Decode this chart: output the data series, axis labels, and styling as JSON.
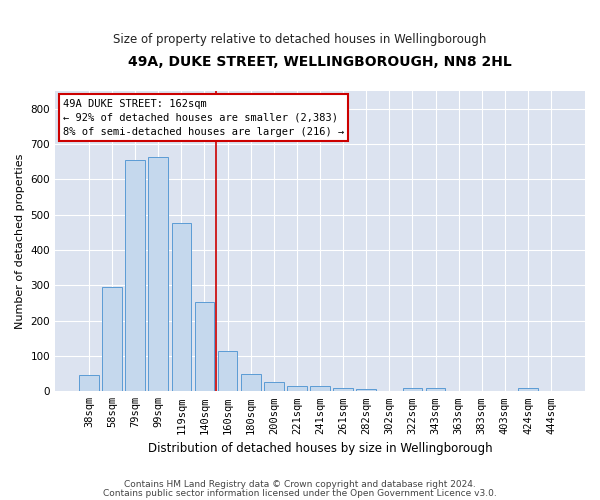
{
  "title": "49A, DUKE STREET, WELLINGBOROUGH, NN8 2HL",
  "subtitle": "Size of property relative to detached houses in Wellingborough",
  "xlabel": "Distribution of detached houses by size in Wellingborough",
  "ylabel": "Number of detached properties",
  "bar_color": "#c5d8ed",
  "bar_edge_color": "#5b9bd5",
  "background_color": "#dce3f0",
  "grid_color": "#ffffff",
  "categories": [
    "38sqm",
    "58sqm",
    "79sqm",
    "99sqm",
    "119sqm",
    "140sqm",
    "160sqm",
    "180sqm",
    "200sqm",
    "221sqm",
    "241sqm",
    "261sqm",
    "282sqm",
    "302sqm",
    "322sqm",
    "343sqm",
    "363sqm",
    "383sqm",
    "403sqm",
    "424sqm",
    "444sqm"
  ],
  "values": [
    45,
    295,
    655,
    663,
    477,
    252,
    113,
    50,
    27,
    16,
    16,
    9,
    7,
    0,
    8,
    9,
    0,
    0,
    0,
    8,
    0
  ],
  "ylim": [
    0,
    850
  ],
  "yticks": [
    0,
    100,
    200,
    300,
    400,
    500,
    600,
    700,
    800
  ],
  "vline_x": 5.5,
  "vline_color": "#cc0000",
  "annotation_line1": "49A DUKE STREET: 162sqm",
  "annotation_line2": "← 92% of detached houses are smaller (2,383)",
  "annotation_line3": "8% of semi-detached houses are larger (216) →",
  "footer1": "Contains HM Land Registry data © Crown copyright and database right 2024.",
  "footer2": "Contains public sector information licensed under the Open Government Licence v3.0.",
  "fig_bg": "#ffffff",
  "title_fontsize": 10,
  "subtitle_fontsize": 8.5,
  "ylabel_fontsize": 8,
  "xlabel_fontsize": 8.5,
  "tick_fontsize": 7.5,
  "annotation_fontsize": 7.5,
  "footer_fontsize": 6.5
}
